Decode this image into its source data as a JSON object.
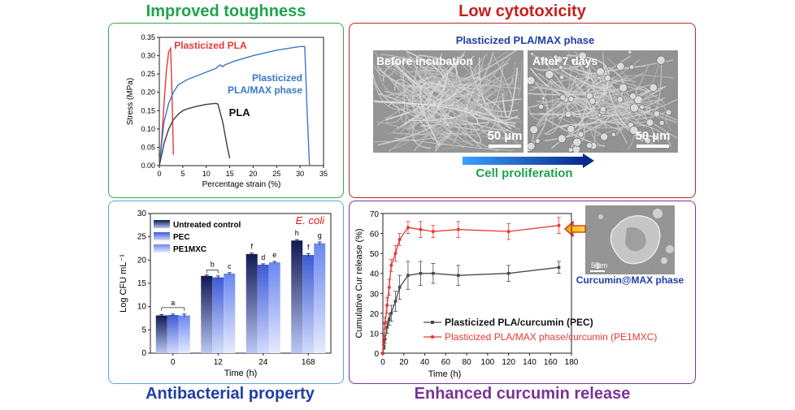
{
  "headings": {
    "toughness": "Improved toughness",
    "cytotoxicity": "Low cytotoxicity",
    "antibacterial": "Antibacterial property",
    "release": "Enhanced curcumin release"
  },
  "colors": {
    "green": "#21a34a",
    "red": "#c81e1e",
    "blue": "#1f3fa8",
    "purple": "#7a3396",
    "panel_green_border": "#3aa757",
    "panel_red_border": "#b22a2a",
    "panel_blue_border": "#5aa9d6",
    "panel_purple_border": "#7a3396"
  },
  "sem_panel": {
    "title": "Plasticized PLA/MAX phase",
    "left_label": "Before incubation",
    "right_label": "After 7 days",
    "scale_left": "50 µm",
    "scale_right": "50 µm",
    "arrow_label": "Cell proliferation"
  },
  "inset": {
    "scale": "5 µm",
    "caption": "Curcumin@MAX phase"
  },
  "chart_data": [
    {
      "type": "line",
      "xlabel": "Percentage strain (%)",
      "ylabel": "Stress (MPa)",
      "xlim": [
        0,
        35
      ],
      "ylim": [
        0,
        0.35
      ],
      "xticks": [
        "0",
        "5",
        "10",
        "15",
        "20",
        "25",
        "30",
        "35"
      ],
      "yticks": [
        "0.00",
        "0.05",
        "0.10",
        "0.15",
        "0.20",
        "0.25",
        "0.30",
        "0.35"
      ],
      "series": [
        {
          "name": "Plasticized PLA",
          "label_lines": [
            "Plasticized PLA"
          ],
          "color": "#e53935",
          "x": [
            0,
            0.5,
            1.0,
            1.5,
            2.0,
            2.4,
            2.7,
            3.0
          ],
          "y": [
            0,
            0.07,
            0.17,
            0.26,
            0.31,
            0.32,
            0.2,
            0.03
          ]
        },
        {
          "name": "Plasticized PLA/MAX phase",
          "label_lines": [
            "Plasticized",
            "PLA/MAX phase"
          ],
          "color": "#3a78c8",
          "x": [
            0,
            0.5,
            1.0,
            2.0,
            3.0,
            4.0,
            6.0,
            8.0,
            10.0,
            12.0,
            13.0,
            13.5,
            14.0,
            16.0,
            20.0,
            25.0,
            30.0,
            31.0,
            31.5,
            32.0
          ],
          "y": [
            0,
            0.06,
            0.12,
            0.17,
            0.2,
            0.22,
            0.235,
            0.245,
            0.255,
            0.265,
            0.275,
            0.27,
            0.275,
            0.285,
            0.3,
            0.315,
            0.325,
            0.325,
            0.15,
            0.0
          ]
        },
        {
          "name": "PLA",
          "label_lines": [
            "PLA"
          ],
          "color": "#3c3c3c",
          "x": [
            0,
            0.5,
            1.0,
            2.0,
            3.0,
            4.0,
            5.0,
            6.0,
            8.0,
            10.0,
            12.0,
            12.5,
            13.5,
            14.5,
            15.0
          ],
          "y": [
            0,
            0.03,
            0.06,
            0.1,
            0.125,
            0.14,
            0.15,
            0.155,
            0.162,
            0.167,
            0.17,
            0.168,
            0.12,
            0.05,
            0.02
          ]
        }
      ]
    },
    {
      "type": "bar",
      "title": "E. coli",
      "xlabel": "Time (h)",
      "ylabel": "Log CFU mL⁻¹",
      "ylim": [
        0,
        30
      ],
      "yticks": [
        "0",
        "5",
        "10",
        "15",
        "20",
        "25",
        "30"
      ],
      "categories": [
        "0",
        "12",
        "24",
        "168"
      ],
      "series": [
        {
          "name": "Untreated control",
          "values": [
            8.1,
            16.6,
            21.3,
            24.2
          ],
          "errors": [
            0.2,
            0.2,
            0.2,
            0.2
          ]
        },
        {
          "name": "PEC",
          "values": [
            8.2,
            16.3,
            19.0,
            21.1
          ],
          "errors": [
            0.2,
            0.3,
            0.2,
            0.3
          ]
        },
        {
          "name": "PE1MXC",
          "values": [
            8.1,
            17.1,
            19.5,
            23.6
          ],
          "errors": [
            0.3,
            0.2,
            0.2,
            0.3
          ]
        }
      ],
      "letters": [
        {
          "category": "0",
          "label": "a"
        },
        {
          "category": "12",
          "label": "b"
        },
        {
          "category": "12",
          "label": "c"
        },
        {
          "category": "24",
          "label": "f"
        },
        {
          "category": "24",
          "label": "d"
        },
        {
          "category": "24",
          "label": "e"
        },
        {
          "category": "168",
          "label": "h"
        },
        {
          "category": "168",
          "label": "f"
        },
        {
          "category": "168",
          "label": "g"
        }
      ]
    },
    {
      "type": "line",
      "xlabel": "Time (h)",
      "ylabel": "Cumulative Cur release (%)",
      "xlim": [
        0,
        180
      ],
      "ylim": [
        0,
        70
      ],
      "xticks": [
        "0",
        "20",
        "40",
        "60",
        "80",
        "100",
        "120",
        "140",
        "160",
        "180"
      ],
      "yticks": [
        "0",
        "10",
        "20",
        "30",
        "40",
        "50",
        "60",
        "70"
      ],
      "series": [
        {
          "name": "Plasticized PLA/curcumin (PEC)",
          "color": "#4a4a4a",
          "x": [
            0,
            1,
            2,
            4,
            6,
            8,
            12,
            16,
            24,
            36,
            48,
            72,
            120,
            168
          ],
          "y": [
            0,
            3,
            7,
            13,
            17,
            20,
            26,
            33,
            39,
            40,
            40,
            39,
            40,
            43
          ],
          "errors": [
            0,
            1,
            2,
            3,
            3,
            4,
            5,
            6,
            7,
            6,
            5,
            5,
            4,
            3
          ]
        },
        {
          "name": "Plasticized PLA/MAX phase/curcumin (PE1MXC)",
          "color": "#e53935",
          "x": [
            0,
            1,
            2,
            4,
            6,
            8,
            12,
            16,
            24,
            36,
            48,
            72,
            120,
            168
          ],
          "y": [
            0,
            8,
            15,
            24,
            33,
            44,
            50,
            57,
            63,
            62,
            61,
            62,
            61,
            64
          ],
          "errors": [
            0,
            2,
            3,
            4,
            4,
            3,
            4,
            3,
            3,
            4,
            3,
            4,
            4,
            4
          ]
        }
      ]
    }
  ]
}
